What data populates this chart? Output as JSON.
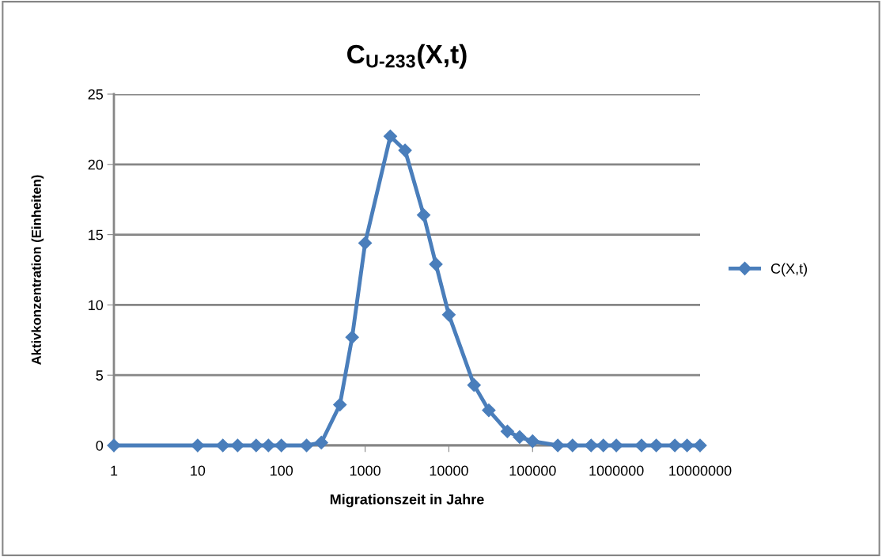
{
  "chart_data": {
    "type": "line",
    "title": "C$_{U-233}$(X,t)",
    "xlabel": "Migrationszeit in Jahre",
    "ylabel": "Aktivkonzentration (Einheiten)",
    "log": "x",
    "x": [
      1,
      10,
      20,
      30,
      50,
      70,
      100,
      200,
      300,
      500,
      700,
      1000,
      2000,
      3000,
      5000,
      7000,
      10000,
      20000,
      30000,
      50000,
      70000,
      100000,
      200000,
      300000,
      500000,
      700000,
      1000000,
      2000000,
      3000000,
      5000000,
      7000000,
      10000000
    ],
    "series": [
      {
        "name": "C(X,t)",
        "color": "#4a7ebb",
        "values": [
          0,
          0,
          0,
          0,
          0,
          0,
          0,
          0,
          0.2,
          2.9,
          7.7,
          14.4,
          22.0,
          21.0,
          16.4,
          12.9,
          9.3,
          4.3,
          2.5,
          1.0,
          0.6,
          0.3,
          0,
          0,
          0,
          0,
          0,
          0,
          0,
          0,
          0,
          0
        ]
      }
    ],
    "xlim": [
      1,
      10000000
    ],
    "xticks": [
      1,
      10,
      100,
      1000,
      10000,
      100000,
      1000000,
      10000000
    ],
    "ylim": [
      0,
      25
    ],
    "yticks": [
      0,
      5,
      10,
      15,
      20,
      25
    ],
    "grid": "y",
    "legend": "right",
    "marker": "diamond",
    "line_style": "solid"
  }
}
